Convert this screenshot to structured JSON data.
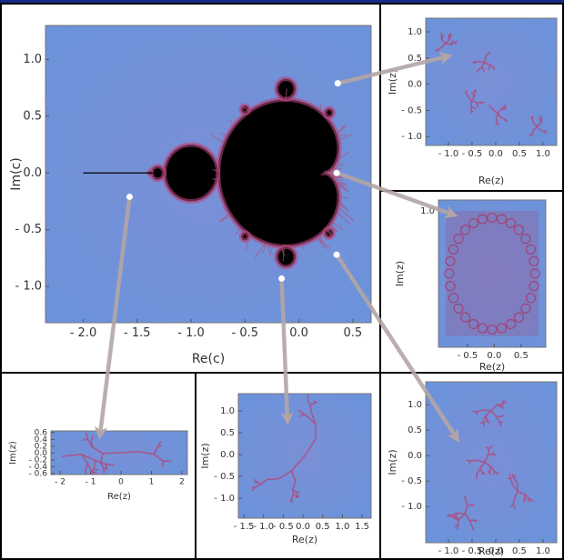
{
  "chart_data": [
    {
      "type": "scatter",
      "xlabel": "Re(c)",
      "ylabel": "Im(c)",
      "xlim": [
        -2.35,
        0.67
      ],
      "ylim": [
        -1.32,
        1.3
      ],
      "xticks": [
        {
          "value": -2,
          "label": "- 2.0"
        },
        {
          "value": -1.5,
          "label": "- 1.5"
        },
        {
          "value": -1,
          "label": "- 1.0"
        },
        {
          "value": -0.5,
          "label": "- 0.5"
        },
        {
          "value": 0,
          "label": "0.0"
        },
        0.5
      ],
      "yticks": [
        {
          "value": 1,
          "label": "1.0"
        },
        0.5,
        {
          "value": 0,
          "label": "0.0"
        },
        {
          "value": -0.5,
          "label": "- 0.5"
        },
        {
          "value": -1,
          "label": "- 1.0"
        }
      ],
      "x": [
        0.36,
        0.35,
        0.35,
        -0.16,
        -1.57
      ],
      "values": [
        0.79,
        0,
        -0.72,
        -0.93,
        -0.21
      ],
      "color": "#ffffff"
    },
    {
      "type": "image",
      "xlabel": "Re(z)",
      "ylabel": "Im(z)",
      "xlim": [
        -1.48,
        1.29
      ],
      "ylim": [
        -1.17,
        1.26
      ],
      "xticks": [
        {
          "value": -1,
          "label": "- 1.0"
        },
        {
          "value": -0.5,
          "label": "- 0.5"
        },
        {
          "value": 0,
          "label": "0.0"
        },
        0.5,
        {
          "value": 1,
          "label": "1.0"
        }
      ],
      "yticks": [
        {
          "value": 1,
          "label": "1.0"
        },
        0.5,
        {
          "value": 0,
          "label": "0.0"
        },
        {
          "value": -0.5,
          "label": "- 0.5"
        },
        {
          "value": -1,
          "label": "- 1.0"
        }
      ]
    },
    {
      "type": "image",
      "xlabel": "Re(z)",
      "ylabel": "Im(z)",
      "xlim": [
        -1.04,
        0.96
      ],
      "ylim": [
        -1.17,
        1.17
      ],
      "xticks": [
        {
          "value": -0.5,
          "label": "- 0.5"
        },
        {
          "value": 0,
          "label": "0.0"
        },
        0.5
      ],
      "yticks": [
        {
          "value": 1,
          "label": "1.0"
        }
      ]
    },
    {
      "type": "image",
      "xlabel": "Re(z)",
      "ylabel": "Im(z)",
      "xlim": [
        -1.48,
        1.29
      ],
      "ylim": [
        -1.71,
        1.45
      ],
      "xticks": [
        {
          "value": -1,
          "label": "- 1.0"
        },
        {
          "value": -0.5,
          "label": "- 0.5"
        },
        {
          "value": 0,
          "label": "0.0"
        },
        0.5,
        {
          "value": 1,
          "label": "1.0"
        }
      ],
      "yticks": [
        {
          "value": 1,
          "label": "1.0"
        },
        0.5,
        {
          "value": 0,
          "label": "0.0"
        },
        {
          "value": -0.5,
          "label": "- 0.5"
        },
        {
          "value": -1,
          "label": "- 1.0"
        }
      ]
    },
    {
      "type": "image",
      "xlabel": "Re(z)",
      "ylabel": "Im(z)",
      "xlim": [
        -2.3,
        2.18
      ],
      "ylim": [
        -0.63,
        0.65
      ],
      "xticks": [
        {
          "value": -2,
          "label": "- 2"
        },
        {
          "value": -1,
          "label": "- 1"
        },
        0,
        1,
        2
      ],
      "yticks": [
        0.6,
        0.4,
        0.2,
        {
          "value": 0,
          "label": "0.0"
        },
        {
          "value": -0.2,
          "label": "- 0.2"
        },
        {
          "value": -0.4,
          "label": "- 0.4"
        },
        {
          "value": -0.6,
          "label": "- 0.6"
        }
      ]
    },
    {
      "type": "image",
      "xlabel": "Re(z)",
      "ylabel": "Im(z)",
      "xlim": [
        -1.64,
        1.73
      ],
      "ylim": [
        -1.46,
        1.4
      ],
      "xticks": [
        {
          "value": -1.5,
          "label": "- 1.5"
        },
        {
          "value": -1,
          "label": "- 1.0"
        },
        {
          "value": -0.5,
          "label": "- 0.5"
        },
        {
          "value": 0,
          "label": "0.0"
        },
        0.5,
        {
          "value": 1,
          "label": "1.0"
        },
        1.5
      ],
      "yticks": [
        {
          "value": 1,
          "label": "1.0"
        },
        0.5,
        {
          "value": 0,
          "label": "0.0"
        },
        {
          "value": -0.5,
          "label": "- 0.5"
        },
        {
          "value": -1,
          "label": "- 1.0"
        }
      ]
    }
  ]
}
